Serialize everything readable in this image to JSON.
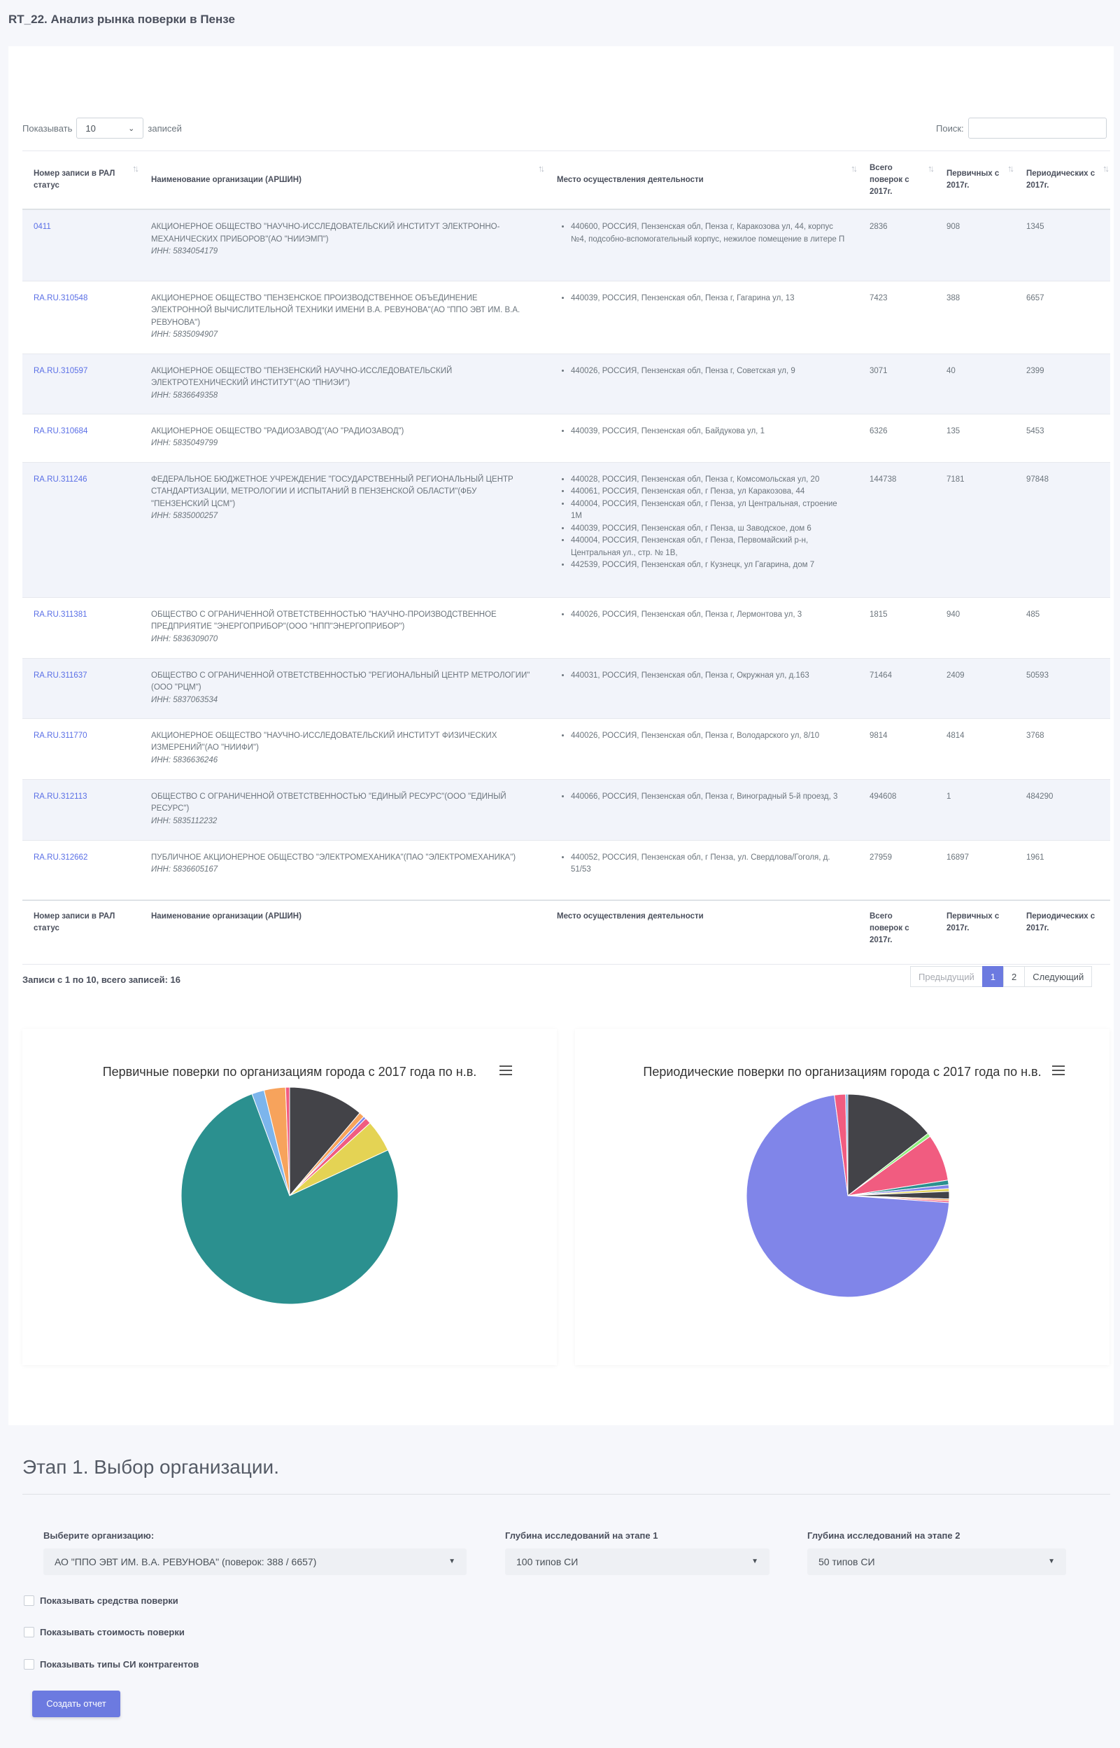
{
  "page": {
    "title": "RT_22. Анализ рынка поверки в Пензе"
  },
  "table_controls": {
    "show_label": "Показывать",
    "page_length": "10",
    "records_label": "записей",
    "search_label": "Поиск:"
  },
  "columns": [
    "Номер записи в РАЛ статус",
    "Наименование организации (АРШИН)",
    "Место осуществления деятельности",
    "Всего поверок с 2017г.",
    "Первичных с 2017г.",
    "Периодических с 2017г."
  ],
  "rows": [
    {
      "id": "0411",
      "org": "АКЦИОНЕРНОЕ ОБЩЕСТВО \"НАУЧНО-ИССЛЕДОВАТЕЛЬСКИЙ ИНСТИТУТ ЭЛЕКТРОННО-МЕХАНИЧЕСКИХ ПРИБОРОВ\"(АО \"НИИЭМП\")",
      "inn": "ИНН: 5834054179",
      "addresses": [
        "440600, РОССИЯ, Пензенская обл, Пенза г, Каракозова ул, 44, корпус №4, подсобно-вспомогательный корпус, нежилое помещение в литере П"
      ],
      "total": "2836",
      "primary": "908",
      "periodic": "1345"
    },
    {
      "id": "RA.RU.310548",
      "org": "АКЦИОНЕРНОЕ ОБЩЕСТВО \"ПЕНЗЕНСКОЕ ПРОИЗВОДСТВЕННОЕ ОБЪЕДИНЕНИЕ ЭЛЕКТРОННОЙ ВЫЧИСЛИТЕЛЬНОЙ ТЕХНИКИ ИМЕНИ В.А. РЕВУНОВА\"(АО \"ППО ЭВТ ИМ. В.А. РЕВУНОВА\")",
      "inn": "ИНН: 5835094907",
      "addresses": [
        "440039, РОССИЯ, Пензенская обл, Пенза г, Гагарина ул, 13"
      ],
      "total": "7423",
      "primary": "388",
      "periodic": "6657"
    },
    {
      "id": "RA.RU.310597",
      "org": "АКЦИОНЕРНОЕ ОБЩЕСТВО \"ПЕНЗЕНСКИЙ НАУЧНО-ИССЛЕДОВАТЕЛЬСКИЙ ЭЛЕКТРОТЕХНИЧЕСКИЙ ИНСТИТУТ\"(АО \"ПНИЭИ\")",
      "inn": "ИНН: 5836649358",
      "addresses": [
        "440026, РОССИЯ, Пензенская обл, Пенза г, Советская ул, 9"
      ],
      "total": "3071",
      "primary": "40",
      "periodic": "2399"
    },
    {
      "id": "RA.RU.310684",
      "org": "АКЦИОНЕРНОЕ ОБЩЕСТВО \"РАДИОЗАВОД\"(АО \"РАДИОЗАВОД\")",
      "inn": "ИНН: 5835049799",
      "addresses": [
        "440039, РОССИЯ, Пензенская обл, Байдукова ул, 1"
      ],
      "total": "6326",
      "primary": "135",
      "periodic": "5453"
    },
    {
      "id": "RA.RU.311246",
      "org": "ФЕДЕРАЛЬНОЕ БЮДЖЕТНОЕ УЧРЕЖДЕНИЕ \"ГОСУДАРСТВЕННЫЙ РЕГИОНАЛЬНЫЙ ЦЕНТР СТАНДАРТИЗАЦИИ, МЕТРОЛОГИИ И ИСПЫТАНИЙ В ПЕНЗЕНСКОЙ ОБЛАСТИ\"(ФБУ \"ПЕНЗЕНСКИЙ ЦСМ\")",
      "inn": "ИНН: 5835000257",
      "addresses": [
        "440028, РОССИЯ, Пензенская обл, Пенза г, Комсомольская ул, 20",
        "440061, РОССИЯ, Пензенская обл, г Пенза, ул Каракозова, 44",
        "440004, РОССИЯ, Пензенская обл, г Пенза, ул Центральная, строение 1М",
        "440039, РОССИЯ, Пензенская обл, г Пенза, ш Заводское, дом 6",
        "440004, РОССИЯ, Пензенская обл, г Пенза, Первомайский р-н, Центральная ул., стр. № 1В,",
        "442539, РОССИЯ, Пензенская обл, г Кузнецк, ул Гагарина, дом 7"
      ],
      "total": "144738",
      "primary": "7181",
      "periodic": "97848"
    },
    {
      "id": "RA.RU.311381",
      "org": "ОБЩЕСТВО С ОГРАНИЧЕННОЙ ОТВЕТСТВЕННОСТЬЮ \"НАУЧНО-ПРОИЗВОДСТВЕННОЕ ПРЕДПРИЯТИЕ \"ЭНЕРГОПРИБОР\"(ООО \"НПП\"ЭНЕРГОПРИБОР\")",
      "inn": "ИНН: 5836309070",
      "addresses": [
        "440026, РОССИЯ, Пензенская обл, Пенза г, Лермонтова ул, 3"
      ],
      "total": "1815",
      "primary": "940",
      "periodic": "485"
    },
    {
      "id": "RA.RU.311637",
      "org": "ОБЩЕСТВО С ОГРАНИЧЕННОЙ ОТВЕТСТВЕННОСТЬЮ \"РЕГИОНАЛЬНЫЙ ЦЕНТР МЕТРОЛОГИИ\"(ООО \"РЦМ\")",
      "inn": "ИНН: 5837063534",
      "addresses": [
        "440031, РОССИЯ, Пензенская обл, Пенза г, Окружная ул, д.163"
      ],
      "total": "71464",
      "primary": "2409",
      "periodic": "50593"
    },
    {
      "id": "RA.RU.311770",
      "org": "АКЦИОНЕРНОЕ ОБЩЕСТВО \"НАУЧНО-ИССЛЕДОВАТЕЛЬСКИЙ ИНСТИТУТ ФИЗИЧЕСКИХ ИЗМЕРЕНИЙ\"(АО \"НИИФИ\")",
      "inn": "ИНН: 5836636246",
      "addresses": [
        "440026, РОССИЯ, Пензенская обл, Пенза г, Володарского ул, 8/10"
      ],
      "total": "9814",
      "primary": "4814",
      "periodic": "3768"
    },
    {
      "id": "RA.RU.312113",
      "org": "ОБЩЕСТВО С ОГРАНИЧЕННОЙ ОТВЕТСТВЕННОСТЬЮ \"ЕДИНЫЙ РЕСУРС\"(ООО \"ЕДИНЫЙ РЕСУРС\")",
      "inn": "ИНН: 5835112232",
      "addresses": [
        "440066, РОССИЯ, Пензенская обл, Пенза г, Виноградный 5-й проезд, 3"
      ],
      "total": "494608",
      "primary": "1",
      "periodic": "484290"
    },
    {
      "id": "RA.RU.312662",
      "org": "ПУБЛИЧНОЕ АКЦИОНЕРНОЕ ОБЩЕСТВО \"ЭЛЕКТРОМЕХАНИКА\"(ПАО \"ЭЛЕКТРОМЕХАНИКА\")",
      "inn": "ИНН: 5836605167",
      "addresses": [
        "440052, РОССИЯ, Пензенская обл, г Пенза, ул. Свердлова/Гоголя, д. 51/53"
      ],
      "total": "27959",
      "primary": "16897",
      "periodic": "1961"
    }
  ],
  "table_info": "Записи с 1 по 10, всего записей: 16",
  "pagination": {
    "prev": "Предыдущий",
    "pages": [
      "1",
      "2"
    ],
    "active": "1",
    "next": "Следующий"
  },
  "charts": {
    "primary_title": "Первичные поверки по организациям города с 2017 года по н.в.",
    "periodic_title": "Периодические поверки по организациям города с 2017 года по н.в."
  },
  "chart_data": [
    {
      "type": "pie",
      "title": "Первичные поверки по организациям города с 2017 года по н.в.",
      "values": [
        16897,
        1200,
        600,
        1400,
        7181,
        115000,
        2800,
        4814,
        900
      ],
      "colors": [
        "#434348",
        "#f7a35c",
        "#8085e9",
        "#f15c80",
        "#e4d354",
        "#2b908f",
        "#7cb5ec",
        "#f7a35c",
        "#f15c80"
      ]
    },
    {
      "type": "pie",
      "title": "Периодические поверки по организациям города с 2017 года по н.в.",
      "values": [
        97848,
        3768,
        50593,
        5000,
        4000,
        3000,
        8000,
        2000,
        1961,
        484290,
        12000,
        2399
      ],
      "colors": [
        "#434348",
        "#90ed7d",
        "#f15c80",
        "#2b908f",
        "#8085e9",
        "#e4d354",
        "#434348",
        "#f7a35c",
        "#f15c80",
        "#8085e9",
        "#f15c80",
        "#7cb5ec"
      ]
    }
  ],
  "stage": {
    "title": "Этап 1. Выбор организации.",
    "org_label": "Выберите организацию:",
    "org_value": "АО \"ППО ЭВТ ИМ. В.А. РЕВУНОВА\" (поверок: 388 / 6657)",
    "depth1_label": "Глубина исследований на этапе 1",
    "depth1_value": "100 типов СИ",
    "depth2_label": "Глубина исследований на этапе 2",
    "depth2_value": "50 типов СИ",
    "check1": "Показывать средства поверки",
    "check2": "Показывать стоимость поверки",
    "check3": "Показывать типы СИ контрагентов",
    "submit": "Создать отчет"
  }
}
